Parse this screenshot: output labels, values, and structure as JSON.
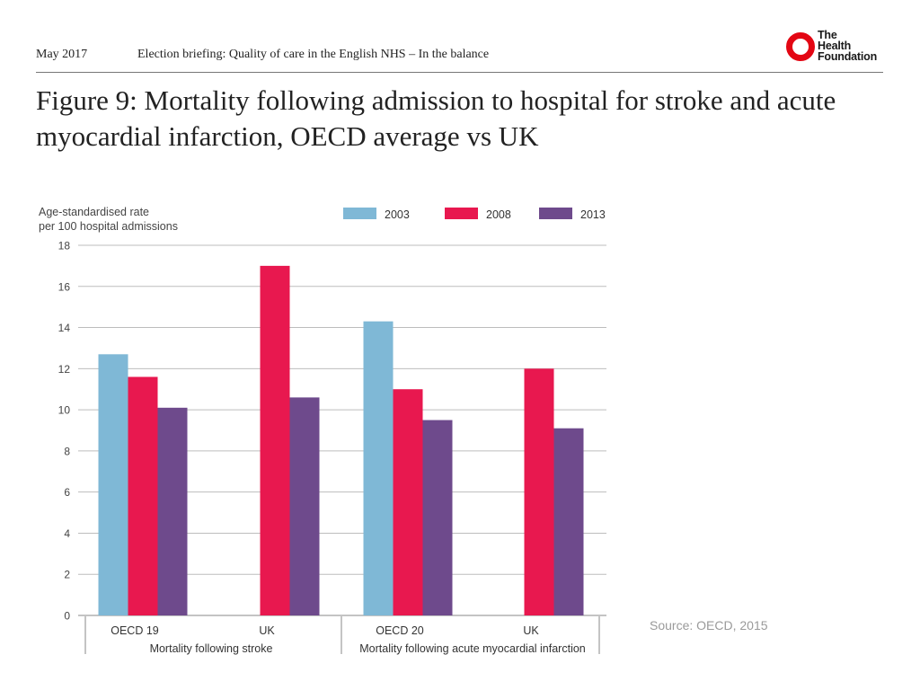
{
  "header": {
    "date": "May 2017",
    "briefing": "Election briefing: Quality of care in the English NHS – In the balance",
    "logo_lines": [
      "The",
      "Health",
      "Foundation"
    ],
    "logo_color": "#e30613"
  },
  "figure_title": "Figure 9: Mortality following admission to hospital for stroke and acute myocardial infarction, OECD average vs UK",
  "source": "Source:  OECD, 2015",
  "chart_data": {
    "type": "bar",
    "title": "Figure 9: Mortality following admission to hospital for stroke and acute myocardial infarction, OECD average vs UK",
    "ylabel_lines": [
      "Age-standardised rate",
      "per 100 hospital admissions"
    ],
    "xlabel": "",
    "ylim": [
      0,
      18
    ],
    "yticks": [
      0,
      2,
      4,
      6,
      8,
      10,
      12,
      14,
      16,
      18
    ],
    "grid": true,
    "legend_position": "top",
    "categories": [
      "OECD 19",
      "UK",
      "OECD 20",
      "UK"
    ],
    "groups": [
      {
        "label": "Mortality following stroke",
        "categories": [
          0,
          1
        ]
      },
      {
        "label": "Mortality following acute myocardial infarction",
        "categories": [
          2,
          3
        ]
      }
    ],
    "series": [
      {
        "name": "2003",
        "color": "#7fb8d6",
        "values": [
          12.7,
          null,
          14.3,
          null
        ]
      },
      {
        "name": "2008",
        "color": "#e8184f",
        "values": [
          11.6,
          17.0,
          11.0,
          12.0
        ]
      },
      {
        "name": "2013",
        "color": "#6e4a8c",
        "values": [
          10.1,
          10.6,
          9.5,
          9.1
        ]
      }
    ]
  }
}
